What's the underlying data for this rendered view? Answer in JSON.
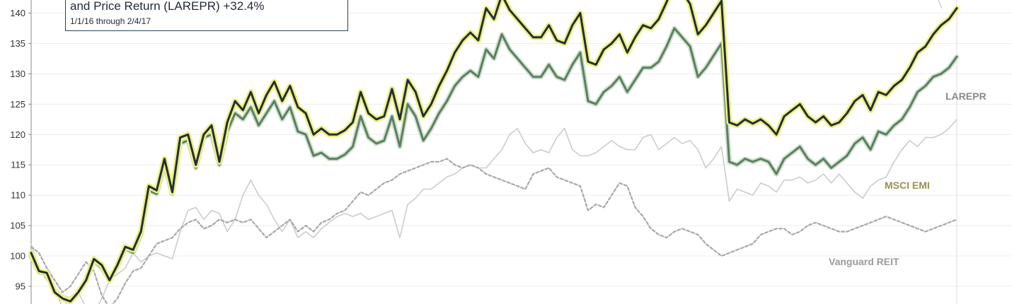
{
  "chart_data": {
    "type": "line",
    "title": "and Price Return (LAREPR) +32.4%",
    "subtitle": "1/1/16 through 2/4/17",
    "ylim": [
      91,
      142
    ],
    "y_ticks": [
      95,
      100,
      105,
      110,
      115,
      120,
      125,
      130,
      135,
      140
    ],
    "grid": true,
    "series": [
      {
        "name": "LAREPR",
        "color": "#1f2f3f",
        "highlight": "#f0f07a",
        "values": [
          100.5,
          97.5,
          97.2,
          94.0,
          93.0,
          92.5,
          94.0,
          96.0,
          99.5,
          98.5,
          96.0,
          98.5,
          101.5,
          101.0,
          104.0,
          111.5,
          110.8,
          116.0,
          110.5,
          119.5,
          120.0,
          115.0,
          120.0,
          121.5,
          115.5,
          122.0,
          125.5,
          124.0,
          127.0,
          123.5,
          126.5,
          128.7,
          125.5,
          128.0,
          124.5,
          123.5,
          120.0,
          121.0,
          120.0,
          120.0,
          120.7,
          122.0,
          127.0,
          123.5,
          122.5,
          123.0,
          127.5,
          122.5,
          129.0,
          127.0,
          123.0,
          125.0,
          128.0,
          130.5,
          133.5,
          135.5,
          136.8,
          135.5,
          140.8,
          139.0,
          143.0,
          140.5,
          139.0,
          137.5,
          136.0,
          136.0,
          138.0,
          135.5,
          135.0,
          138.0,
          140.0,
          132.0,
          131.5,
          134.0,
          135.0,
          136.5,
          133.5,
          136.0,
          138.0,
          137.5,
          139.0,
          141.8,
          145.0,
          143.5,
          141.5,
          136.5,
          138.0,
          140.0,
          142.0,
          122.0,
          121.5,
          122.5,
          121.8,
          122.5,
          121.5,
          120.0,
          123.0,
          124.0,
          125.0,
          123.0,
          122.0,
          123.0,
          121.5,
          122.0,
          123.5,
          125.5,
          126.5,
          124.0,
          127.0,
          126.5,
          128.0,
          129.0,
          131.0,
          133.5,
          134.5,
          136.5,
          138.0,
          139.0,
          140.8
        ]
      },
      {
        "name": "",
        "color": "#5b8060",
        "values": [
          100.0,
          97.3,
          97.0,
          94.2,
          93.2,
          92.8,
          94.0,
          96.0,
          99.2,
          98.0,
          96.0,
          98.3,
          101.2,
          100.5,
          103.5,
          110.8,
          110.2,
          115.0,
          110.2,
          118.5,
          119.0,
          114.5,
          119.5,
          120.0,
          115.0,
          120.5,
          123.5,
          122.5,
          124.5,
          121.5,
          123.5,
          125.5,
          122.5,
          124.5,
          120.5,
          120.0,
          116.5,
          117.0,
          116.0,
          116.0,
          116.7,
          118.0,
          123.0,
          119.5,
          118.5,
          119.0,
          123.0,
          118.0,
          125.0,
          123.0,
          119.0,
          121.0,
          123.5,
          125.5,
          128.0,
          129.5,
          130.5,
          129.5,
          134.0,
          132.5,
          136.5,
          134.0,
          132.5,
          131.0,
          129.5,
          129.5,
          131.5,
          129.5,
          129.0,
          131.5,
          133.5,
          125.5,
          125.0,
          127.0,
          128.0,
          129.5,
          127.0,
          129.0,
          131.0,
          131.0,
          132.0,
          134.5,
          137.5,
          136.0,
          134.5,
          129.5,
          131.0,
          133.0,
          135.0,
          115.5,
          115.0,
          116.0,
          115.5,
          116.0,
          115.5,
          113.5,
          116.0,
          117.0,
          118.0,
          116.0,
          115.0,
          116.0,
          114.5,
          115.5,
          116.5,
          118.5,
          119.5,
          117.5,
          120.5,
          120.0,
          121.5,
          122.5,
          124.5,
          127.0,
          128.0,
          129.5,
          130.0,
          131.0,
          132.8
        ]
      },
      {
        "name": "MSCI EMI",
        "color": "#cccccc",
        "values": [
          102.0,
          98.0,
          96.0,
          94.5,
          91.5,
          93.0,
          94.0,
          91.5,
          90.5,
          93.0,
          96.0,
          97.0,
          98.0,
          100.5,
          99.0,
          100.0,
          100.5,
          100.0,
          99.5,
          104.0,
          107.5,
          108.0,
          106.0,
          107.5,
          107.0,
          104.0,
          106.0,
          110.0,
          112.5,
          110.0,
          108.5,
          106.0,
          104.0,
          106.0,
          103.0,
          104.0,
          103.0,
          104.5,
          105.5,
          106.5,
          107.0,
          106.5,
          107.0,
          106.0,
          106.5,
          107.0,
          107.5,
          103.0,
          108.5,
          109.5,
          111.0,
          111.0,
          112.0,
          113.0,
          113.5,
          114.5,
          115.0,
          114.5,
          114.5,
          116.0,
          117.5,
          120.0,
          121.0,
          118.5,
          117.0,
          117.5,
          117.0,
          119.5,
          121.0,
          117.5,
          116.5,
          116.5,
          117.0,
          118.0,
          119.0,
          118.0,
          117.5,
          117.5,
          119.5,
          120.0,
          117.5,
          118.5,
          119.5,
          118.5,
          119.0,
          117.5,
          114.5,
          116.0,
          118.0,
          109.0,
          111.0,
          110.5,
          110.0,
          112.0,
          111.5,
          110.5,
          112.5,
          112.5,
          113.0,
          112.0,
          112.5,
          113.5,
          112.0,
          113.5,
          112.0,
          110.5,
          109.5,
          111.5,
          112.5,
          113.0,
          115.5,
          117.5,
          119.0,
          118.0,
          119.5,
          119.5,
          120.0,
          121.0,
          122.5
        ]
      },
      {
        "name": "Vanguard REIT",
        "color": "#a8a8a8",
        "dashed": true,
        "values": [
          101.5,
          100.5,
          98.0,
          96.0,
          94.0,
          95.0,
          97.0,
          99.0,
          97.5,
          93.5,
          91.5,
          93.0,
          95.5,
          97.5,
          98.0,
          100.0,
          102.0,
          102.5,
          103.0,
          104.5,
          105.5,
          106.0,
          104.5,
          105.0,
          106.0,
          105.5,
          106.0,
          105.5,
          106.0,
          104.5,
          103.0,
          104.0,
          105.0,
          106.0,
          104.0,
          105.0,
          104.0,
          105.5,
          106.0,
          107.0,
          107.5,
          109.0,
          110.5,
          110.0,
          111.0,
          112.0,
          112.5,
          113.5,
          114.0,
          114.5,
          115.0,
          115.5,
          115.5,
          116.0,
          115.0,
          114.5,
          115.0,
          114.5,
          113.5,
          113.0,
          112.5,
          112.0,
          111.5,
          111.0,
          113.5,
          114.0,
          114.5,
          113.0,
          112.5,
          112.0,
          111.5,
          107.5,
          108.5,
          108.0,
          110.0,
          112.0,
          111.5,
          108.0,
          106.5,
          104.5,
          103.5,
          103.0,
          104.0,
          104.5,
          104.0,
          103.5,
          102.0,
          101.0,
          100.0,
          100.5,
          101.0,
          101.5,
          102.0,
          103.5,
          104.0,
          104.5,
          104.5,
          103.5,
          104.0,
          105.0,
          105.5,
          105.0,
          104.5,
          104.0,
          104.0,
          104.5,
          105.0,
          105.5,
          106.0,
          106.5,
          106.0,
          105.5,
          105.0,
          104.5,
          104.0,
          104.5,
          105.0,
          105.5,
          106.0
        ]
      }
    ]
  }
}
